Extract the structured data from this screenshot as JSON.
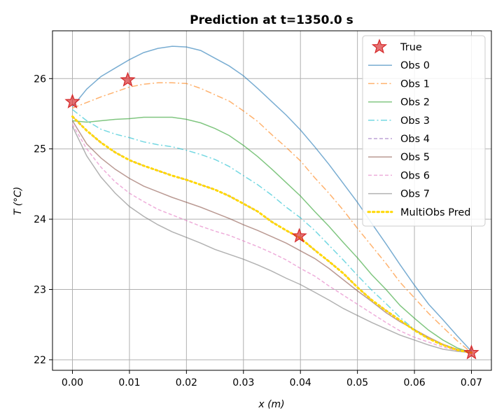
{
  "chart_data": {
    "type": "line",
    "title": "Prediction at t=1350.0 s",
    "xlabel": "x (m)",
    "ylabel": "T (°C)",
    "xlim": [
      -0.0035,
      0.0735
    ],
    "ylim": [
      21.85,
      26.68
    ],
    "xticks": [
      0.0,
      0.01,
      0.02,
      0.03,
      0.04,
      0.05,
      0.06,
      0.07
    ],
    "xtick_labels": [
      "0.00",
      "0.01",
      "0.02",
      "0.03",
      "0.04",
      "0.05",
      "0.06",
      "0.07"
    ],
    "yticks": [
      22,
      23,
      24,
      25,
      26
    ],
    "ytick_labels": [
      "22",
      "23",
      "24",
      "25",
      "26"
    ],
    "grid": true,
    "legend_position": "top-right",
    "true_points": {
      "name": "True",
      "color": "#d62728",
      "x": [
        0.0,
        0.0097,
        0.0398,
        0.07
      ],
      "y": [
        25.67,
        25.98,
        23.76,
        22.1
      ]
    },
    "series": [
      {
        "name": "Obs 0",
        "color": "#1f77b4",
        "dash": "solid",
        "x": [
          0.0,
          0.0025,
          0.005,
          0.0075,
          0.01,
          0.0125,
          0.015,
          0.0175,
          0.02,
          0.0225,
          0.025,
          0.0275,
          0.03,
          0.0325,
          0.035,
          0.0375,
          0.04,
          0.0425,
          0.045,
          0.0475,
          0.05,
          0.0525,
          0.055,
          0.0575,
          0.06,
          0.0625,
          0.065,
          0.0675,
          0.07
        ],
        "y": [
          25.6,
          25.85,
          26.03,
          26.15,
          26.27,
          26.37,
          26.43,
          26.46,
          26.45,
          26.4,
          26.29,
          26.18,
          26.04,
          25.86,
          25.67,
          25.48,
          25.27,
          25.03,
          24.78,
          24.51,
          24.24,
          23.94,
          23.65,
          23.35,
          23.06,
          22.79,
          22.57,
          22.34,
          22.12
        ]
      },
      {
        "name": "Obs 1",
        "color": "#ff7f0e",
        "dash": "dashdot",
        "x": [
          0.0,
          0.0025,
          0.005,
          0.0075,
          0.01,
          0.0125,
          0.015,
          0.0175,
          0.02,
          0.0225,
          0.025,
          0.0275,
          0.03,
          0.0325,
          0.035,
          0.0375,
          0.04,
          0.0425,
          0.045,
          0.0475,
          0.05,
          0.0525,
          0.055,
          0.0575,
          0.06,
          0.0625,
          0.065,
          0.0675,
          0.07
        ],
        "y": [
          25.58,
          25.66,
          25.74,
          25.81,
          25.88,
          25.92,
          25.94,
          25.94,
          25.93,
          25.86,
          25.77,
          25.68,
          25.54,
          25.39,
          25.2,
          25.02,
          24.83,
          24.59,
          24.37,
          24.13,
          23.87,
          23.62,
          23.37,
          23.1,
          22.88,
          22.66,
          22.46,
          22.27,
          22.1
        ]
      },
      {
        "name": "Obs 2",
        "color": "#2ca02c",
        "dash": "solid",
        "x": [
          0.0,
          0.0025,
          0.005,
          0.0075,
          0.01,
          0.0125,
          0.015,
          0.0175,
          0.02,
          0.0225,
          0.025,
          0.0275,
          0.03,
          0.0325,
          0.035,
          0.0375,
          0.04,
          0.0425,
          0.045,
          0.0475,
          0.05,
          0.0525,
          0.055,
          0.0575,
          0.06,
          0.0625,
          0.065,
          0.0675,
          0.07
        ],
        "y": [
          25.4,
          25.38,
          25.4,
          25.42,
          25.43,
          25.45,
          25.45,
          25.45,
          25.42,
          25.37,
          25.29,
          25.19,
          25.05,
          24.89,
          24.71,
          24.52,
          24.33,
          24.11,
          23.9,
          23.67,
          23.45,
          23.21,
          23.0,
          22.77,
          22.59,
          22.42,
          22.28,
          22.17,
          22.1
        ]
      },
      {
        "name": "Obs 3",
        "color": "#17becf",
        "dash": "dashdot",
        "x": [
          0.0,
          0.0025,
          0.005,
          0.0075,
          0.01,
          0.0125,
          0.015,
          0.0175,
          0.02,
          0.0225,
          0.025,
          0.0275,
          0.03,
          0.0325,
          0.035,
          0.0375,
          0.04,
          0.0425,
          0.045,
          0.0475,
          0.05,
          0.0525,
          0.055,
          0.0575,
          0.06,
          0.0625,
          0.065,
          0.0675,
          0.07
        ],
        "y": [
          25.56,
          25.4,
          25.28,
          25.21,
          25.16,
          25.1,
          25.06,
          25.03,
          24.98,
          24.92,
          24.85,
          24.75,
          24.62,
          24.49,
          24.34,
          24.17,
          24.02,
          23.84,
          23.63,
          23.42,
          23.2,
          22.99,
          22.8,
          22.6,
          22.43,
          22.3,
          22.21,
          22.14,
          22.1
        ]
      },
      {
        "name": "Obs 4",
        "color": "#9467bd",
        "dash": "dashed",
        "x": [
          0.0,
          0.0025,
          0.005,
          0.0075,
          0.01,
          0.0125,
          0.015,
          0.0175,
          0.02,
          0.0225,
          0.025,
          0.0275,
          0.03,
          0.0325,
          0.035,
          0.0375,
          0.04,
          0.0425,
          0.045,
          0.0475,
          0.05,
          0.0525,
          0.055,
          0.0575,
          0.06,
          0.0625,
          0.065,
          0.0675,
          0.07
        ],
        "y": [
          25.46,
          25.26,
          25.09,
          24.95,
          24.84,
          24.76,
          24.69,
          24.62,
          24.56,
          24.49,
          24.42,
          24.33,
          24.22,
          24.11,
          23.96,
          23.84,
          23.73,
          23.56,
          23.4,
          23.23,
          23.03,
          22.85,
          22.7,
          22.56,
          22.42,
          22.3,
          22.21,
          22.14,
          22.1
        ]
      },
      {
        "name": "Obs 5",
        "color": "#8c564b",
        "dash": "solid",
        "x": [
          0.0,
          0.0025,
          0.005,
          0.0075,
          0.01,
          0.0125,
          0.015,
          0.0175,
          0.02,
          0.0225,
          0.025,
          0.0275,
          0.03,
          0.0325,
          0.035,
          0.0375,
          0.04,
          0.0425,
          0.045,
          0.0475,
          0.05,
          0.0525,
          0.055,
          0.0575,
          0.06,
          0.0625,
          0.065,
          0.0675,
          0.07
        ],
        "y": [
          25.4,
          25.07,
          24.87,
          24.71,
          24.58,
          24.47,
          24.39,
          24.31,
          24.24,
          24.17,
          24.09,
          24.01,
          23.92,
          23.84,
          23.75,
          23.66,
          23.55,
          23.44,
          23.3,
          23.14,
          22.98,
          22.83,
          22.67,
          22.54,
          22.43,
          22.32,
          22.22,
          22.15,
          22.1
        ]
      },
      {
        "name": "Obs 6",
        "color": "#e377c2",
        "dash": "dashed",
        "x": [
          0.0,
          0.0025,
          0.005,
          0.0075,
          0.01,
          0.0125,
          0.015,
          0.0175,
          0.02,
          0.0225,
          0.025,
          0.0275,
          0.03,
          0.0325,
          0.035,
          0.0375,
          0.04,
          0.0425,
          0.045,
          0.0475,
          0.05,
          0.0525,
          0.055,
          0.0575,
          0.06,
          0.0625,
          0.065,
          0.0675,
          0.07
        ],
        "y": [
          25.35,
          25.0,
          24.74,
          24.53,
          24.37,
          24.25,
          24.14,
          24.06,
          23.98,
          23.9,
          23.83,
          23.77,
          23.69,
          23.61,
          23.52,
          23.42,
          23.3,
          23.19,
          23.05,
          22.92,
          22.79,
          22.66,
          22.53,
          22.41,
          22.32,
          22.25,
          22.18,
          22.13,
          22.1
        ]
      },
      {
        "name": "Obs 7",
        "color": "#7f7f7f",
        "dash": "solid",
        "x": [
          0.0,
          0.0025,
          0.005,
          0.0075,
          0.01,
          0.0125,
          0.015,
          0.0175,
          0.02,
          0.0225,
          0.025,
          0.0275,
          0.03,
          0.0325,
          0.035,
          0.0375,
          0.04,
          0.0425,
          0.045,
          0.0475,
          0.05,
          0.0525,
          0.055,
          0.0575,
          0.06,
          0.0625,
          0.065,
          0.0675,
          0.07
        ],
        "y": [
          25.32,
          24.9,
          24.6,
          24.37,
          24.18,
          24.04,
          23.92,
          23.82,
          23.74,
          23.66,
          23.57,
          23.5,
          23.43,
          23.35,
          23.26,
          23.16,
          23.07,
          22.96,
          22.85,
          22.73,
          22.63,
          22.53,
          22.44,
          22.35,
          22.28,
          22.21,
          22.15,
          22.12,
          22.1
        ]
      },
      {
        "name": "MultiObs Pred",
        "color": "#ffd700",
        "dash": "dotted",
        "x": [
          0.0,
          0.0025,
          0.005,
          0.0075,
          0.01,
          0.0125,
          0.015,
          0.0175,
          0.02,
          0.0225,
          0.025,
          0.0275,
          0.03,
          0.0325,
          0.035,
          0.0375,
          0.04,
          0.0425,
          0.045,
          0.0475,
          0.05,
          0.0525,
          0.055,
          0.0575,
          0.06,
          0.0625,
          0.065,
          0.0675,
          0.07
        ],
        "y": [
          25.46,
          25.26,
          25.09,
          24.95,
          24.84,
          24.76,
          24.69,
          24.62,
          24.56,
          24.49,
          24.42,
          24.33,
          24.22,
          24.11,
          23.96,
          23.84,
          23.73,
          23.56,
          23.4,
          23.23,
          23.03,
          22.85,
          22.7,
          22.56,
          22.42,
          22.3,
          22.21,
          22.14,
          22.1
        ]
      }
    ]
  }
}
